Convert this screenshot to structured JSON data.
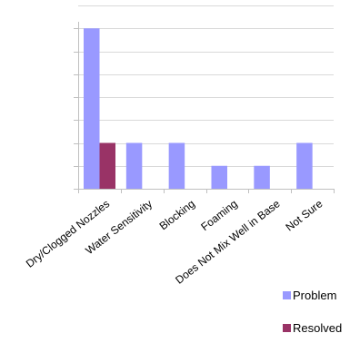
{
  "chart_data": {
    "type": "bar",
    "categories": [
      "Dry/Clogged Nozzles",
      "Water Sensitivity",
      "Blocking",
      "Foaming",
      "Does Not Mix Well in Base",
      "Not Sure"
    ],
    "series": [
      {
        "name": "Problem",
        "values": [
          7,
          2,
          2,
          1,
          1,
          2
        ],
        "color": "#9999ff"
      },
      {
        "name": "Resolved",
        "values": [
          2,
          0,
          0,
          0,
          0,
          0
        ],
        "color": "#993366"
      }
    ],
    "ylim": [
      0,
      8
    ],
    "y_tick_step": 1,
    "grid": true,
    "legend_placement": "bottom-right"
  }
}
